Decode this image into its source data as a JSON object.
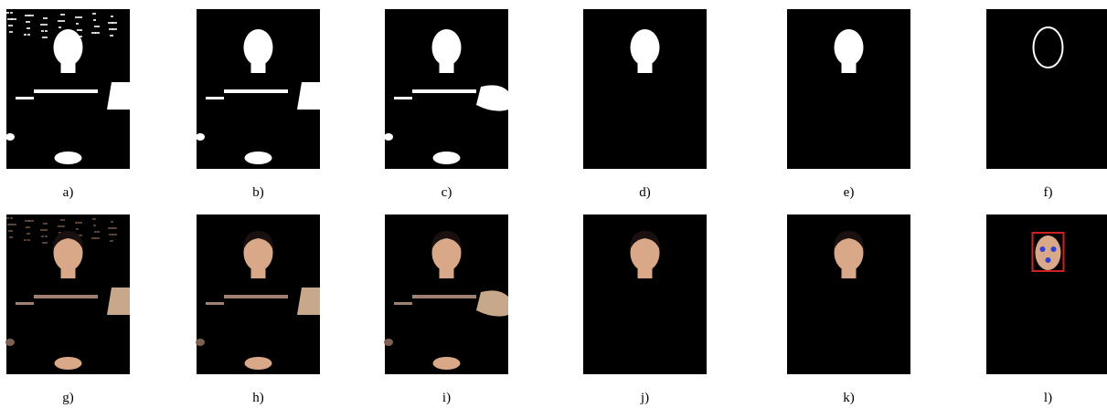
{
  "panels": [
    {
      "label": "a)"
    },
    {
      "label": "b)"
    },
    {
      "label": "c)"
    },
    {
      "label": "d)"
    },
    {
      "label": "e)"
    },
    {
      "label": "f)"
    },
    {
      "label": "g)"
    },
    {
      "label": "h)"
    },
    {
      "label": "i)"
    },
    {
      "label": "j)"
    },
    {
      "label": "k)"
    },
    {
      "label": "l)"
    }
  ]
}
